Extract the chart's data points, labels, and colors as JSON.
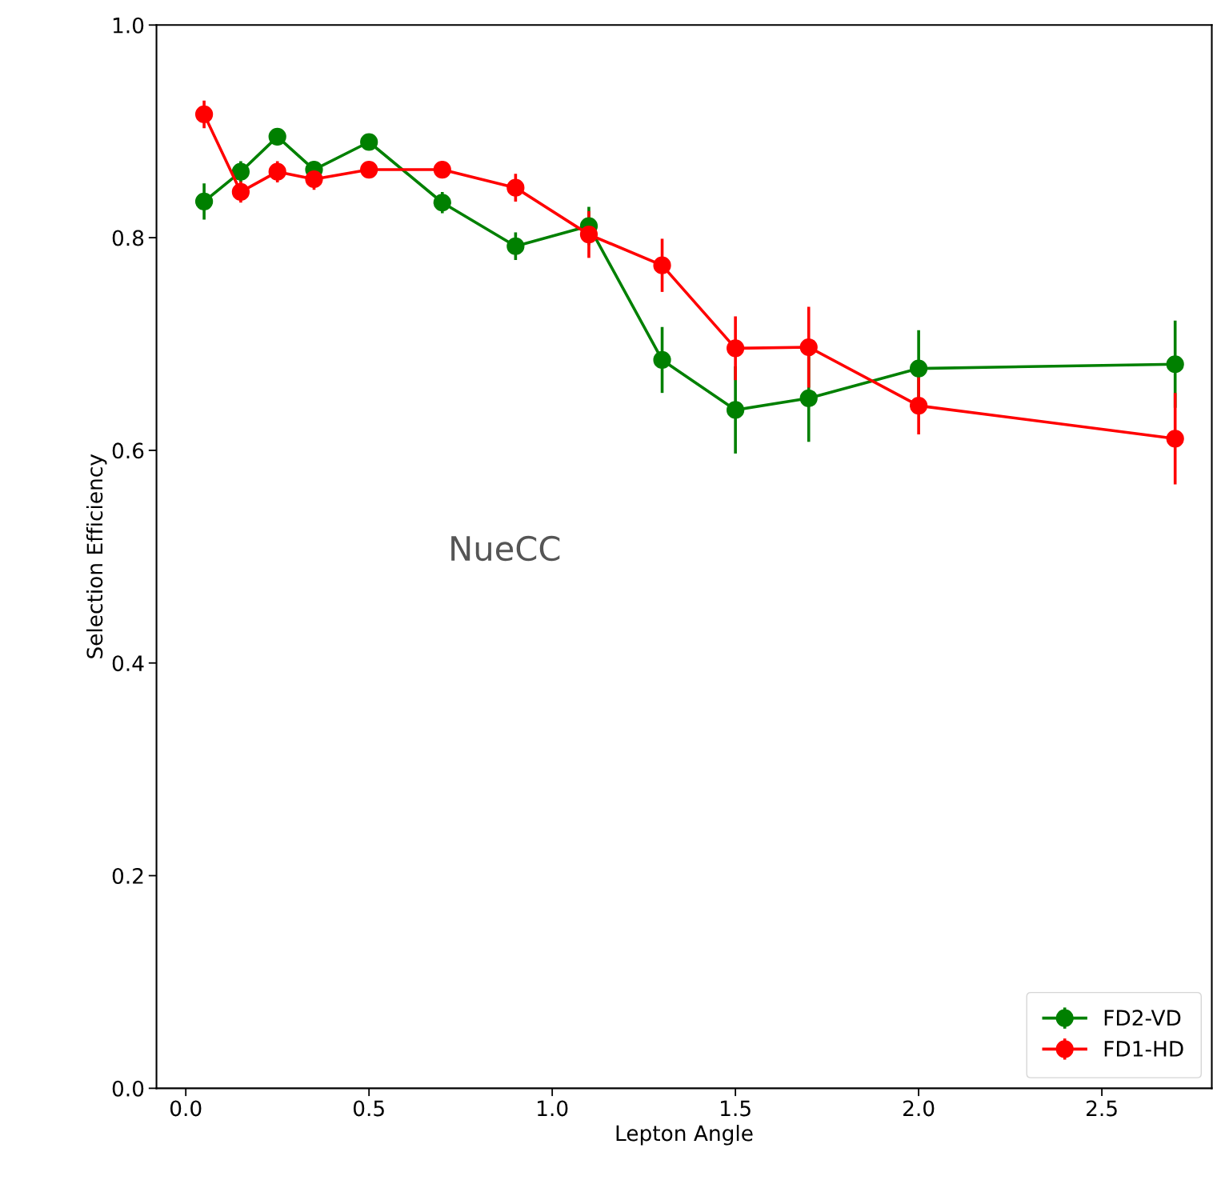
{
  "chart_data": {
    "type": "line",
    "xlabel": "Lepton Angle",
    "ylabel": "Selection Efficiency",
    "annotations": [
      "NueCC"
    ],
    "x": [
      0.05,
      0.15,
      0.25,
      0.35,
      0.5,
      0.7,
      0.9,
      1.1,
      1.3,
      1.5,
      1.7,
      2.0,
      2.7
    ],
    "series": [
      {
        "name": "FD2-VD",
        "color": "#008000",
        "values": [
          0.834,
          0.862,
          0.895,
          0.864,
          0.89,
          0.833,
          0.792,
          0.811,
          0.685,
          0.638,
          0.649,
          0.677,
          0.681
        ],
        "errors": [
          0.017,
          0.01,
          0.008,
          0.008,
          0.006,
          0.01,
          0.013,
          0.018,
          0.031,
          0.041,
          0.041,
          0.036,
          0.041
        ]
      },
      {
        "name": "FD1-HD",
        "color": "#ff0000",
        "values": [
          0.916,
          0.843,
          0.862,
          0.855,
          0.864,
          0.864,
          0.847,
          0.803,
          0.774,
          0.696,
          0.697,
          0.642,
          0.611
        ],
        "errors": [
          0.013,
          0.01,
          0.01,
          0.01,
          0.005,
          0.008,
          0.013,
          0.022,
          0.025,
          0.03,
          0.038,
          0.027,
          0.043
        ]
      }
    ],
    "xlim": [
      -0.08,
      2.8
    ],
    "ylim": [
      0.0,
      1.0
    ],
    "xticks": [
      {
        "value": 0.0,
        "label": "0.0"
      },
      0.5,
      {
        "value": 1.0,
        "label": "1.0"
      },
      1.5,
      {
        "value": 2.0,
        "label": "2.0"
      },
      2.5
    ],
    "yticks": [
      {
        "value": 0.0,
        "label": "0.0"
      },
      0.2,
      0.4,
      0.6,
      0.8,
      {
        "value": 1.0,
        "label": "1.0"
      }
    ],
    "legend": "bottom right",
    "marker": "circle",
    "line_style": "solid",
    "grid": false
  }
}
